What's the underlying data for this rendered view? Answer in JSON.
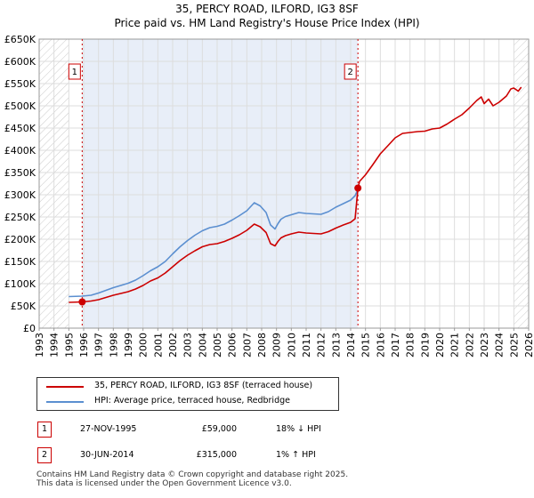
{
  "colors": {
    "price_paid": "#cc0000",
    "hpi": "#5b8fd0",
    "grid": "#dddddd",
    "shading": "#e8eef8",
    "marker_border": "#cc0000"
  },
  "chart_data": {
    "type": "line",
    "title_line1": "35, PERCY ROAD, ILFORD, IG3 8SF",
    "title_line2": "Price paid vs. HM Land Registry's House Price Index (HPI)",
    "ylim": [
      0,
      650000
    ],
    "xlim": [
      1993,
      2026
    ],
    "y_ticks": [
      {
        "value": 0,
        "label": "£0"
      },
      {
        "value": 50000,
        "label": "£50K"
      },
      {
        "value": 100000,
        "label": "£100K"
      },
      {
        "value": 150000,
        "label": "£150K"
      },
      {
        "value": 200000,
        "label": "£200K"
      },
      {
        "value": 250000,
        "label": "£250K"
      },
      {
        "value": 300000,
        "label": "£300K"
      },
      {
        "value": 350000,
        "label": "£350K"
      },
      {
        "value": 400000,
        "label": "£400K"
      },
      {
        "value": 450000,
        "label": "£450K"
      },
      {
        "value": 500000,
        "label": "£500K"
      },
      {
        "value": 550000,
        "label": "£550K"
      },
      {
        "value": 600000,
        "label": "£600K"
      },
      {
        "value": 650000,
        "label": "£650K"
      }
    ],
    "x_ticks": [
      "1993",
      "1994",
      "1995",
      "1996",
      "1997",
      "1998",
      "1999",
      "2000",
      "2001",
      "2002",
      "2003",
      "2004",
      "2005",
      "2006",
      "2007",
      "2008",
      "2009",
      "2010",
      "2011",
      "2012",
      "2013",
      "2014",
      "2015",
      "2016",
      "2017",
      "2018",
      "2019",
      "2020",
      "2021",
      "2022",
      "2023",
      "2024",
      "2025",
      "2026"
    ],
    "hatched_ranges": [
      [
        1993,
        1995.0
      ],
      [
        2025.0,
        2026
      ]
    ],
    "series": [
      {
        "name": "35, PERCY ROAD, ILFORD, IG3 8SF (terraced house)",
        "color": "#cc0000",
        "x": [
          1995.0,
          1995.9,
          1996.5,
          1997.0,
          1997.5,
          1998.0,
          1998.5,
          1999.0,
          1999.5,
          2000.0,
          2000.5,
          2001.0,
          2001.5,
          2002.0,
          2002.5,
          2003.0,
          2003.5,
          2004.0,
          2004.5,
          2005.0,
          2005.5,
          2006.0,
          2006.5,
          2007.0,
          2007.5,
          2007.9,
          2008.3,
          2008.6,
          2008.9,
          2009.1,
          2009.3,
          2009.6,
          2010.0,
          2010.5,
          2011.0,
          2011.5,
          2012.0,
          2012.5,
          2013.0,
          2013.5,
          2014.0,
          2014.3,
          2014.49,
          2014.6,
          2015.0,
          2015.5,
          2016.0,
          2016.5,
          2017.0,
          2017.5,
          2018.0,
          2018.5,
          2019.0,
          2019.5,
          2020.0,
          2020.5,
          2021.0,
          2021.5,
          2022.0,
          2022.5,
          2022.8,
          2023.0,
          2023.3,
          2023.6,
          2024.0,
          2024.5,
          2024.8,
          2025.0,
          2025.3,
          2025.5
        ],
        "y": [
          58000,
          59000,
          61000,
          64000,
          69000,
          74000,
          78000,
          82000,
          88000,
          96000,
          106000,
          113000,
          124000,
          138000,
          152000,
          164000,
          174000,
          183000,
          188000,
          190000,
          195000,
          202000,
          210000,
          220000,
          234000,
          228000,
          215000,
          190000,
          185000,
          195000,
          203000,
          208000,
          212000,
          216000,
          214000,
          213000,
          212000,
          217000,
          225000,
          232000,
          238000,
          246000,
          315000,
          330000,
          345000,
          368000,
          392000,
          410000,
          428000,
          438000,
          440000,
          442000,
          443000,
          448000,
          450000,
          459000,
          470000,
          480000,
          495000,
          512000,
          520000,
          505000,
          515000,
          500000,
          508000,
          522000,
          538000,
          540000,
          533000,
          542000
        ]
      },
      {
        "name": "HPI: Average price, terraced house, Redbridge",
        "color": "#5b8fd0",
        "x": [
          1995.0,
          1995.9,
          1996.5,
          1997.0,
          1997.5,
          1998.0,
          1998.5,
          1999.0,
          1999.5,
          2000.0,
          2000.5,
          2001.0,
          2001.5,
          2002.0,
          2002.5,
          2003.0,
          2003.5,
          2004.0,
          2004.5,
          2005.0,
          2005.5,
          2006.0,
          2006.5,
          2007.0,
          2007.5,
          2007.9,
          2008.3,
          2008.6,
          2008.9,
          2009.1,
          2009.3,
          2009.6,
          2010.0,
          2010.5,
          2011.0,
          2011.5,
          2012.0,
          2012.5,
          2013.0,
          2013.5,
          2014.0,
          2014.3,
          2014.49
        ],
        "y": [
          71000,
          72000,
          74000,
          79000,
          85000,
          91000,
          96000,
          101000,
          108000,
          118000,
          129000,
          138000,
          150000,
          167000,
          183000,
          197000,
          209000,
          219000,
          226000,
          229000,
          234000,
          243000,
          253000,
          264000,
          282000,
          275000,
          260000,
          232000,
          223000,
          235000,
          245000,
          251000,
          255000,
          260000,
          258000,
          257000,
          256000,
          262000,
          272000,
          280000,
          288000,
          298000,
          312000
        ]
      }
    ],
    "sales": [
      {
        "marker": "1",
        "x": 1995.9,
        "price": 59000
      },
      {
        "marker": "2",
        "x": 2014.49,
        "price": 315000
      }
    ]
  },
  "legend": {
    "items": [
      {
        "label": "35, PERCY ROAD, ILFORD, IG3 8SF (terraced house)"
      },
      {
        "label": "HPI: Average price, terraced house, Redbridge"
      }
    ]
  },
  "transactions": [
    {
      "marker": "1",
      "date": "27-NOV-1995",
      "price": "£59,000",
      "hpi": "18% ↓ HPI"
    },
    {
      "marker": "2",
      "date": "30-JUN-2014",
      "price": "£315,000",
      "hpi": "1% ↑ HPI"
    }
  ],
  "footer": {
    "line1": "Contains HM Land Registry data © Crown copyright and database right 2025.",
    "line2": "This data is licensed under the Open Government Licence v3.0."
  }
}
